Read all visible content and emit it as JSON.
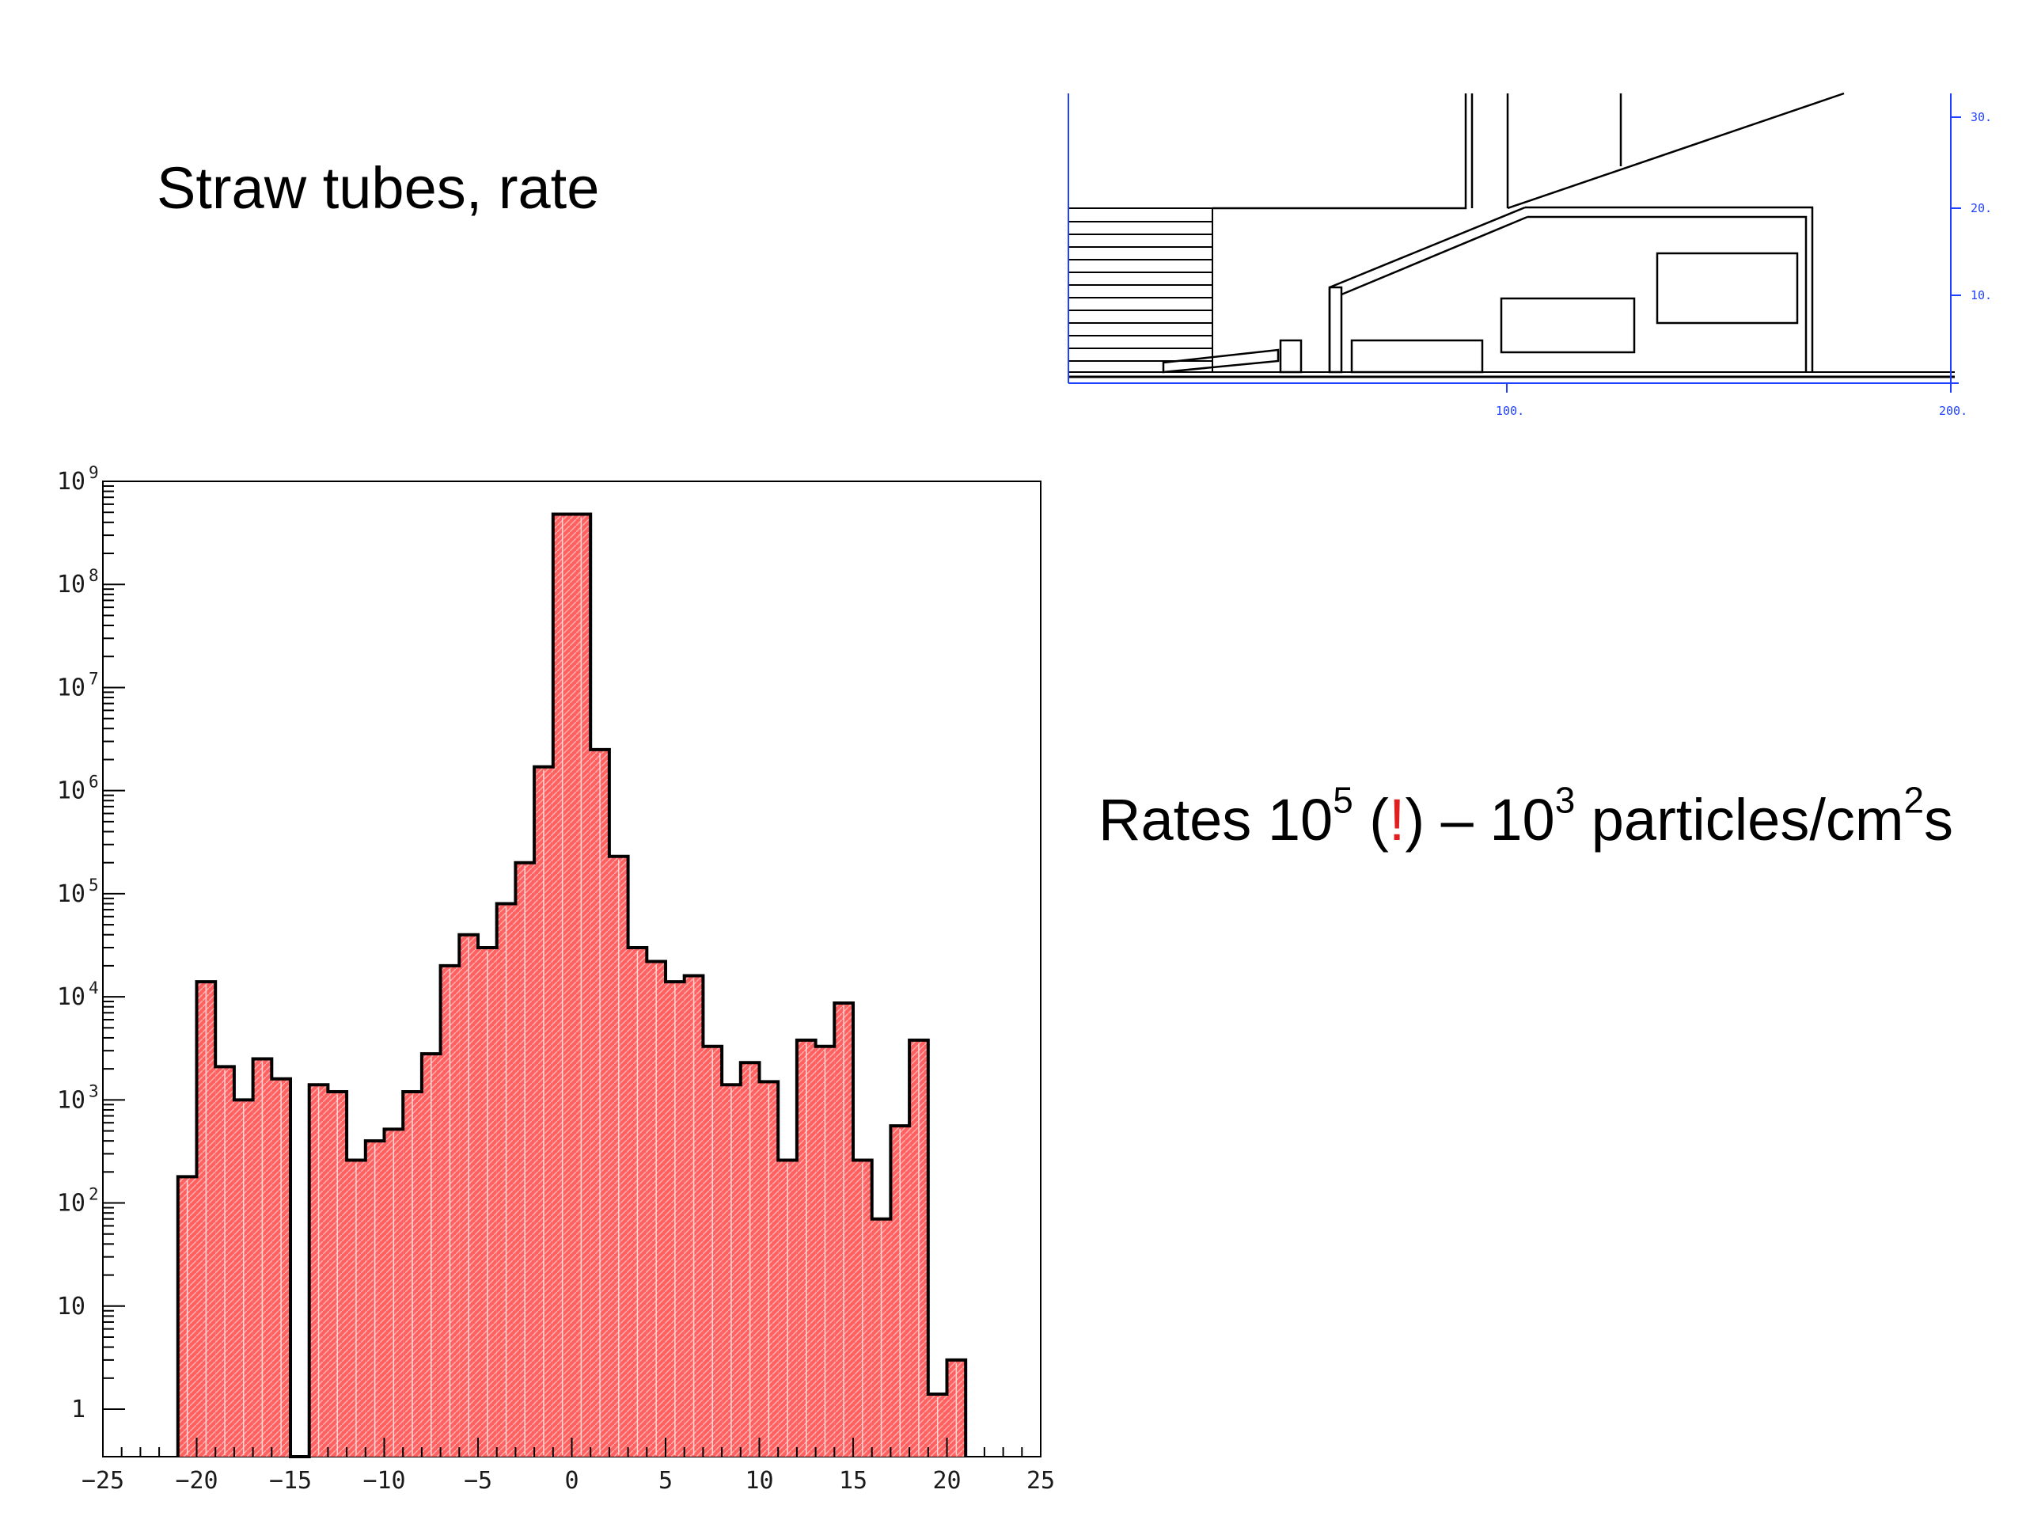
{
  "slide": {
    "title": "Straw tubes, rate",
    "rates": {
      "prefix": "Rates 10",
      "sup1": "5",
      "open": " (",
      "excl": "!",
      "mid": ") – 10",
      "sup2": "3",
      "suffix": " particles/cm",
      "sup3": "2",
      "end": "s"
    }
  },
  "geometry_view": {
    "x_tick_labels": [
      "100.",
      "200."
    ],
    "y_tick_labels": [
      "10.",
      "20.",
      "30."
    ],
    "axis_color": "#2040ff"
  },
  "chart_data": {
    "type": "bar",
    "style": "step histogram",
    "title": "",
    "xlabel": "",
    "ylabel": "",
    "xlim": [
      -25,
      25
    ],
    "ylim": [
      1,
      1000000000
    ],
    "y_scale": "log",
    "x_ticks": [
      "−25",
      "−20",
      "−15",
      "−10",
      "−5",
      "0",
      "5",
      "10",
      "15",
      "20",
      "25"
    ],
    "y_ticks": [
      {
        "base": "1",
        "exp": ""
      },
      {
        "base": "10",
        "exp": ""
      },
      {
        "base": "10",
        "exp": "2"
      },
      {
        "base": "10",
        "exp": "3"
      },
      {
        "base": "10",
        "exp": "4"
      },
      {
        "base": "10",
        "exp": "5"
      },
      {
        "base": "10",
        "exp": "6"
      },
      {
        "base": "10",
        "exp": "7"
      },
      {
        "base": "10",
        "exp": "8"
      },
      {
        "base": "10",
        "exp": "9"
      }
    ],
    "bin_width": 1,
    "bin_starts": [
      -21,
      -20,
      -19,
      -18,
      -17,
      -16,
      -15,
      -14,
      -13,
      -12,
      -11,
      -10,
      -9,
      -8,
      -7,
      -6,
      -5,
      -4,
      -3,
      -2,
      -1,
      0,
      1,
      2,
      3,
      4,
      5,
      6,
      7,
      8,
      9,
      10,
      11,
      12,
      13,
      14,
      15,
      16,
      17,
      18,
      19,
      20
    ],
    "values": [
      180,
      14000,
      2100,
      1000,
      2500,
      1600,
      0,
      1400,
      1200,
      260,
      400,
      520,
      1200,
      2800,
      20000,
      40000,
      30000,
      80000,
      200000,
      1700000,
      480000000,
      480000000,
      2500000,
      230000,
      30000,
      22000,
      14000,
      16000,
      3300,
      1400,
      2300,
      1500,
      260,
      3800,
      3300,
      8700,
      260,
      70,
      560,
      3800,
      1.4,
      3
    ],
    "fill_color": "#ff6060",
    "line_color": "#000000",
    "grid": false
  }
}
